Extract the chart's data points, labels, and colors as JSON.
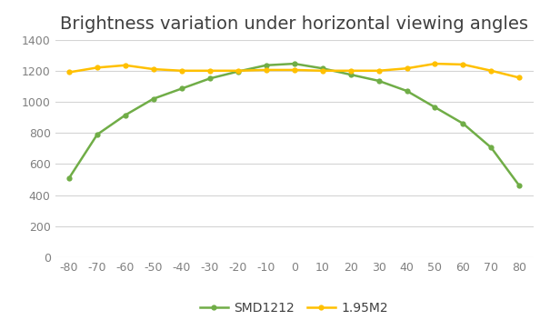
{
  "title": "Brightness variation under horizontal viewing angles",
  "x_values": [
    -80,
    -70,
    -60,
    -50,
    -40,
    -30,
    -20,
    -10,
    0,
    10,
    20,
    30,
    40,
    50,
    60,
    70,
    80
  ],
  "smd1212": [
    510,
    790,
    915,
    1020,
    1085,
    1150,
    1195,
    1235,
    1245,
    1215,
    1175,
    1135,
    1070,
    965,
    860,
    705,
    460
  ],
  "m195": [
    1190,
    1220,
    1235,
    1210,
    1200,
    1200,
    1200,
    1205,
    1205,
    1200,
    1200,
    1200,
    1215,
    1245,
    1240,
    1200,
    1155
  ],
  "smd1212_color": "#70ad47",
  "m195_color": "#ffc000",
  "ylim": [
    0,
    1400
  ],
  "yticks": [
    0,
    200,
    400,
    600,
    800,
    1000,
    1200,
    1400
  ],
  "xticks": [
    -80,
    -70,
    -60,
    -50,
    -40,
    -30,
    -20,
    -10,
    0,
    10,
    20,
    30,
    40,
    50,
    60,
    70,
    80
  ],
  "legend_smd": "SMD1212",
  "legend_m195": "1.95M2",
  "bg_color": "#ffffff",
  "grid_color": "#d4d4d4",
  "title_fontsize": 14,
  "tick_fontsize": 9,
  "marker_size": 4.5,
  "line_width": 1.8,
  "xlim": [
    -85,
    85
  ]
}
